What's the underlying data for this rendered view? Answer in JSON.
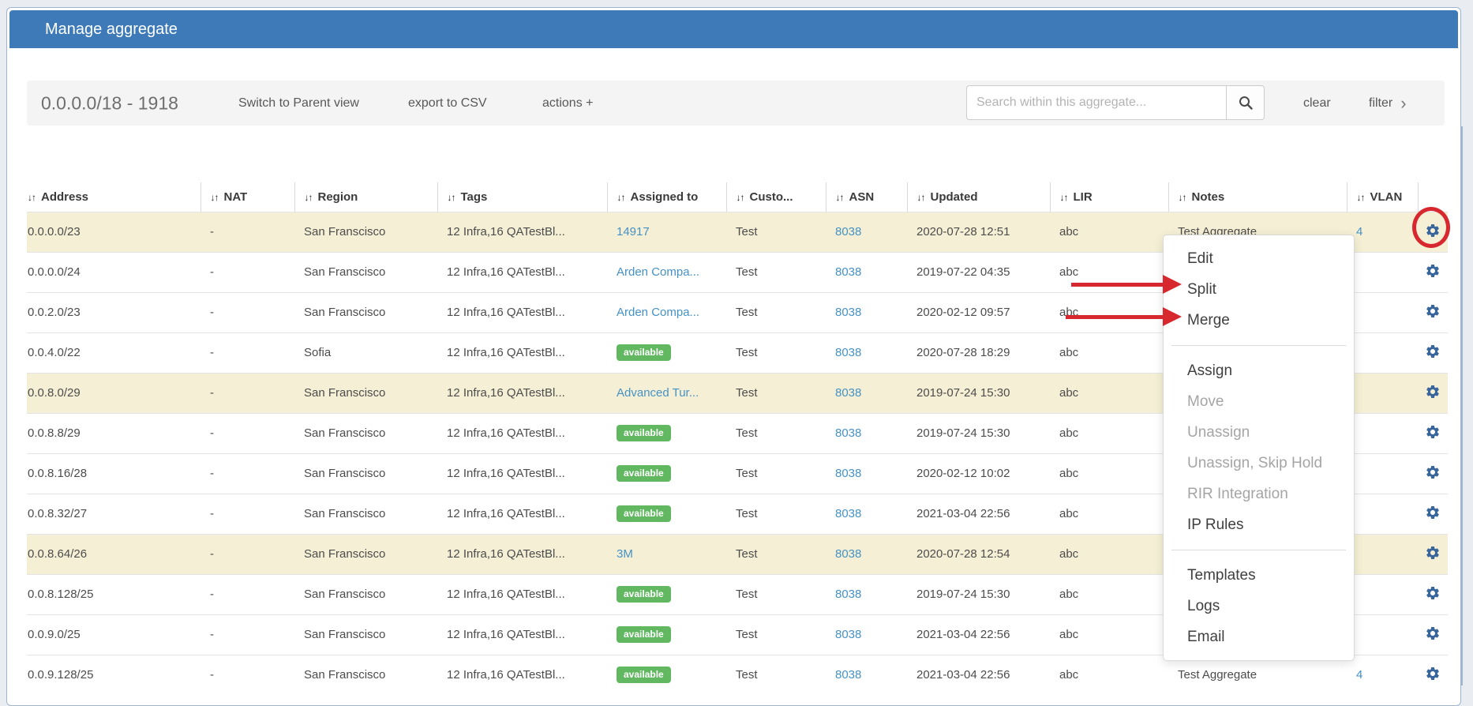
{
  "window": {
    "title": "Manage aggregate"
  },
  "toolbar": {
    "aggregate_label": "0.0.0.0/18 - 1918",
    "switch_view_label": "Switch to Parent view",
    "export_csv_label": "export to CSV",
    "actions_label": "actions +",
    "search_placeholder": "Search within this aggregate...",
    "clear_label": "clear",
    "filter_label": "filter",
    "filter_chevron": "›"
  },
  "table": {
    "sort_icon": "↓↑",
    "columns": [
      "Address",
      "NAT",
      "Region",
      "Tags",
      "Assigned to",
      "Custo...",
      "ASN",
      "Updated",
      "LIR",
      "Notes",
      "VLAN",
      ""
    ],
    "badge_label": "available",
    "rows": [
      {
        "address": "0.0.0.0/23",
        "nat": "-",
        "region": "San Franscisco",
        "tags": "12 Infra,16 QATestBl...",
        "assigned": "14917",
        "assigned_type": "link",
        "customer": "Test",
        "asn": "8038",
        "updated": "2020-07-28 12:51",
        "lir": "abc",
        "notes": "Test Aggregate",
        "vlan": "4",
        "highlight": true
      },
      {
        "address": "0.0.0.0/24",
        "nat": "-",
        "region": "San Franscisco",
        "tags": "12 Infra,16 QATestBl...",
        "assigned": "Arden Compa...",
        "assigned_type": "link",
        "customer": "Test",
        "asn": "8038",
        "updated": "2019-07-22 04:35",
        "lir": "abc",
        "notes": "",
        "vlan": "",
        "highlight": false
      },
      {
        "address": "0.0.2.0/23",
        "nat": "-",
        "region": "San Franscisco",
        "tags": "12 Infra,16 QATestBl...",
        "assigned": "Arden Compa...",
        "assigned_type": "link",
        "customer": "Test",
        "asn": "8038",
        "updated": "2020-02-12 09:57",
        "lir": "abc",
        "notes": "",
        "vlan": "",
        "highlight": false
      },
      {
        "address": "0.0.4.0/22",
        "nat": "-",
        "region": "Sofia",
        "tags": "12 Infra,16 QATestBl...",
        "assigned": "available",
        "assigned_type": "badge",
        "customer": "Test",
        "asn": "8038",
        "updated": "2020-07-28 18:29",
        "lir": "abc",
        "notes": "",
        "vlan": "",
        "highlight": false
      },
      {
        "address": "0.0.8.0/29",
        "nat": "-",
        "region": "San Franscisco",
        "tags": "12 Infra,16 QATestBl...",
        "assigned": "Advanced Tur...",
        "assigned_type": "link",
        "customer": "Test",
        "asn": "8038",
        "updated": "2019-07-24 15:30",
        "lir": "abc",
        "notes": "",
        "vlan": "",
        "highlight": true
      },
      {
        "address": "0.0.8.8/29",
        "nat": "-",
        "region": "San Franscisco",
        "tags": "12 Infra,16 QATestBl...",
        "assigned": "available",
        "assigned_type": "badge",
        "customer": "Test",
        "asn": "8038",
        "updated": "2019-07-24 15:30",
        "lir": "abc",
        "notes": "",
        "vlan": "",
        "highlight": false
      },
      {
        "address": "0.0.8.16/28",
        "nat": "-",
        "region": "San Franscisco",
        "tags": "12 Infra,16 QATestBl...",
        "assigned": "available",
        "assigned_type": "badge",
        "customer": "Test",
        "asn": "8038",
        "updated": "2020-02-12 10:02",
        "lir": "abc",
        "notes": "",
        "vlan": "",
        "highlight": false
      },
      {
        "address": "0.0.8.32/27",
        "nat": "-",
        "region": "San Franscisco",
        "tags": "12 Infra,16 QATestBl...",
        "assigned": "available",
        "assigned_type": "badge",
        "customer": "Test",
        "asn": "8038",
        "updated": "2021-03-04 22:56",
        "lir": "abc",
        "notes": "",
        "vlan": "",
        "highlight": false
      },
      {
        "address": "0.0.8.64/26",
        "nat": "-",
        "region": "San Franscisco",
        "tags": "12 Infra,16 QATestBl...",
        "assigned": "3M",
        "assigned_type": "link",
        "customer": "Test",
        "asn": "8038",
        "updated": "2020-07-28 12:54",
        "lir": "abc",
        "notes": "",
        "vlan": "",
        "highlight": true
      },
      {
        "address": "0.0.8.128/25",
        "nat": "-",
        "region": "San Franscisco",
        "tags": "12 Infra,16 QATestBl...",
        "assigned": "available",
        "assigned_type": "badge",
        "customer": "Test",
        "asn": "8038",
        "updated": "2019-07-24 15:30",
        "lir": "abc",
        "notes": "",
        "vlan": "",
        "highlight": false
      },
      {
        "address": "0.0.9.0/25",
        "nat": "-",
        "region": "San Franscisco",
        "tags": "12 Infra,16 QATestBl...",
        "assigned": "available",
        "assigned_type": "badge",
        "customer": "Test",
        "asn": "8038",
        "updated": "2021-03-04 22:56",
        "lir": "abc",
        "notes": "",
        "vlan": "",
        "highlight": false
      },
      {
        "address": "0.0.9.128/25",
        "nat": "-",
        "region": "San Franscisco",
        "tags": "12 Infra,16 QATestBl...",
        "assigned": "available",
        "assigned_type": "badge",
        "customer": "Test",
        "asn": "8038",
        "updated": "2021-03-04 22:56",
        "lir": "abc",
        "notes": "Test Aggregate",
        "vlan": "4",
        "highlight": false
      }
    ]
  },
  "context_menu": {
    "items": [
      {
        "label": "Edit",
        "enabled": true
      },
      {
        "label": "Split",
        "enabled": true
      },
      {
        "label": "Merge",
        "enabled": true
      },
      {
        "divider": true
      },
      {
        "label": "Assign",
        "enabled": true
      },
      {
        "label": "Move",
        "enabled": false
      },
      {
        "label": "Unassign",
        "enabled": false
      },
      {
        "label": "Unassign, Skip Hold",
        "enabled": false
      },
      {
        "label": "RIR Integration",
        "enabled": false
      },
      {
        "label": "IP Rules",
        "enabled": true
      },
      {
        "divider": true
      },
      {
        "label": "Templates",
        "enabled": true
      },
      {
        "label": "Logs",
        "enabled": true
      },
      {
        "label": "Email",
        "enabled": true
      }
    ]
  },
  "colors": {
    "titlebar_blue": "#3d7ab7",
    "link_blue": "#4591c5",
    "badge_green": "#61b861",
    "row_highlight": "#f5f0d5",
    "gear_blue": "#38659b",
    "annotation_red": "#d7282f"
  }
}
